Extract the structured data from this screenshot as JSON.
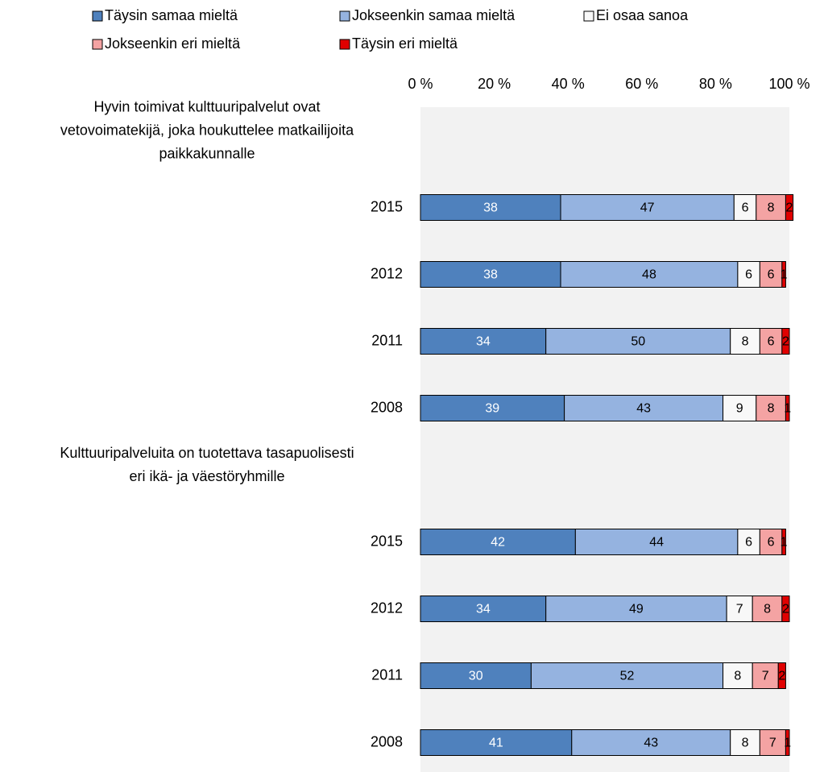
{
  "chart_data": {
    "type": "stacked_bar_horizontal",
    "categories": [
      [
        "Hyvin toimivat kulttuuripalvelut ovat",
        "vetovoimatekijä, joka houkuttelee matkailijoita",
        "paikkakunnalle"
      ],
      "2015",
      "2012",
      "2011",
      "2008",
      [
        "Kulttuuripalveluita on tuotettava tasapuolisesti",
        "eri ikä- ja väestöryhmille"
      ],
      "2015",
      "2012",
      "2011",
      "2008"
    ],
    "series": [
      {
        "name": "Täysin samaa mieltä",
        "color": "#4f81bd",
        "values": [
          null,
          38,
          38,
          34,
          39,
          null,
          42,
          34,
          30,
          41
        ]
      },
      {
        "name": "Jokseenkin samaa mieltä",
        "color": "#95b3e0",
        "values": [
          null,
          47,
          48,
          50,
          43,
          null,
          44,
          49,
          52,
          43
        ]
      },
      {
        "name": "Ei osaa sanoa",
        "color": "#f8f8f8",
        "values": [
          null,
          6,
          6,
          8,
          9,
          null,
          6,
          7,
          8,
          8
        ]
      },
      {
        "name": "Jokseenkin eri mieltä",
        "color": "#f4a3a3",
        "values": [
          null,
          8,
          6,
          6,
          8,
          null,
          6,
          8,
          7,
          7
        ]
      },
      {
        "name": "Täysin eri mieltä",
        "color": "#e00000",
        "values": [
          null,
          2,
          1,
          2,
          1,
          null,
          1,
          2,
          2,
          1
        ]
      }
    ],
    "xlim": [
      0,
      100
    ],
    "xticks": [
      {
        "value": 0,
        "label": "0 %"
      },
      {
        "value": 20,
        "label": "20 %"
      },
      {
        "value": 40,
        "label": "40 %"
      },
      {
        "value": 60,
        "label": "60 %"
      },
      {
        "value": 80,
        "label": "80 %"
      },
      {
        "value": 100,
        "label": "100 %"
      }
    ]
  }
}
